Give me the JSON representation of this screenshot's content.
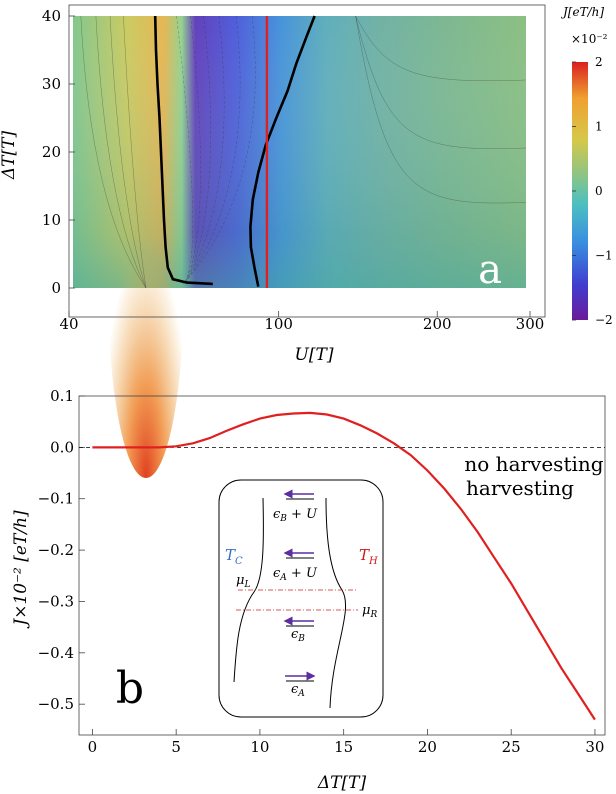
{
  "chart_data": [
    {
      "type": "heatmap",
      "panel_label": "a",
      "xlabel": "U[T]",
      "ylabel": "ΔT[T]",
      "x_scale": "log",
      "xlim": [
        40,
        300
      ],
      "ylim": [
        0,
        40
      ],
      "xticks": [
        40,
        100,
        200,
        300
      ],
      "xtick_labels": [
        "40",
        "100",
        "200",
        "300"
      ],
      "yticks": [
        0,
        10,
        20,
        30,
        40
      ],
      "ytick_labels": [
        "0",
        "10",
        "20",
        "30",
        "40"
      ],
      "colorbar": {
        "title": "J[eT/h]",
        "scale": "×10⁻²",
        "range": [
          -2,
          2
        ],
        "ticks": [
          2,
          1,
          0,
          -1,
          -2
        ],
        "tick_labels": [
          "2",
          "1",
          "0",
          "−1",
          "−2"
        ],
        "colormap": [
          "#6a1b9a",
          "#3f3fd0",
          "#3a8ee0",
          "#4cc0c0",
          "#86c48a",
          "#d6c84a",
          "#f0a030",
          "#d92020"
        ]
      },
      "zero_contours": [
        {
          "name": "",
          "color": "#000000",
          "points": [
            [
              58.3,
              40
            ],
            [
              58.5,
              35
            ],
            [
              58.9,
              30
            ],
            [
              59.4,
              25
            ],
            [
              59.8,
              20
            ],
            [
              60.2,
              15
            ],
            [
              60.6,
              10
            ],
            [
              61.0,
              6
            ],
            [
              61.6,
              3
            ],
            [
              63,
              1.3
            ],
            [
              67,
              0.8
            ],
            [
              75,
              0.6
            ]
          ]
        },
        {
          "name": "",
          "color": "#000000",
          "points": [
            [
              91.5,
              0.2
            ],
            [
              90,
              3
            ],
            [
              88.6,
              6
            ],
            [
              88.4,
              9
            ],
            [
              89.3,
              13
            ],
            [
              91.5,
              17
            ],
            [
              94.5,
              21
            ],
            [
              99,
              25
            ],
            [
              104,
              29
            ],
            [
              108,
              33
            ],
            [
              113,
              37
            ],
            [
              117,
              40
            ]
          ]
        }
      ],
      "marker_line": {
        "x": 95,
        "y_range": [
          0,
          40
        ],
        "color": "#e02020"
      }
    },
    {
      "type": "line",
      "panel_label": "b",
      "xlabel": "ΔT[T]",
      "ylabel": "J×10⁻² [eT/h]",
      "xlim": [
        -0.8,
        30.6
      ],
      "ylim": [
        -0.56,
        0.1
      ],
      "xticks": [
        0,
        5,
        10,
        15,
        20,
        25,
        30
      ],
      "xtick_labels": [
        "0",
        "5",
        "10",
        "15",
        "20",
        "25",
        "30"
      ],
      "yticks": [
        0.1,
        0.0,
        -0.1,
        -0.2,
        -0.3,
        -0.4,
        -0.5
      ],
      "ytick_labels": [
        "0.1",
        "0.0",
        "−0.1",
        "−0.2",
        "−0.3",
        "−0.4",
        "−0.5"
      ],
      "reference_line": {
        "y": 0.0,
        "style": "dashed",
        "color": "#000000"
      },
      "series": [
        {
          "name": "",
          "color": "#e02020",
          "x": [
            0,
            1,
            2,
            3,
            4,
            5,
            6,
            7,
            8,
            9,
            10,
            11,
            12,
            13,
            14,
            15,
            16,
            17,
            18,
            19,
            20,
            21,
            22,
            23,
            24,
            25,
            26,
            27,
            28,
            29,
            30
          ],
          "y": [
            0.0,
            0.0,
            0.0,
            0.0,
            0.0,
            0.002,
            0.008,
            0.018,
            0.032,
            0.045,
            0.056,
            0.063,
            0.066,
            0.067,
            0.064,
            0.056,
            0.043,
            0.027,
            0.008,
            -0.015,
            -0.045,
            -0.08,
            -0.12,
            -0.165,
            -0.215,
            -0.265,
            -0.32,
            -0.375,
            -0.43,
            -0.48,
            -0.53
          ]
        }
      ],
      "annotations": {
        "above": "no harvesting",
        "below": "harvesting"
      },
      "inset": {
        "left_reservoir": "T",
        "left_reservoir_sub": "C",
        "right_reservoir": "T",
        "right_reservoir_sub": "H",
        "mu_left": "μ",
        "mu_left_sub": "L",
        "mu_right": "μ",
        "mu_right_sub": "R",
        "levels": [
          {
            "sym": "ϵ",
            "sub": "B",
            "suffix": " + U",
            "arrow": "left"
          },
          {
            "sym": "ϵ",
            "sub": "A",
            "suffix": " + U",
            "arrow": "left"
          },
          {
            "sym": "ϵ",
            "sub": "B",
            "suffix": "",
            "arrow": "left"
          },
          {
            "sym": "ϵ",
            "sub": "A",
            "suffix": "",
            "arrow": "right"
          }
        ],
        "colors": {
          "cold": "#3a6cc8",
          "hot": "#d01818",
          "arrow": "#5b2fa0",
          "mu_line": "#d02020"
        }
      }
    }
  ]
}
